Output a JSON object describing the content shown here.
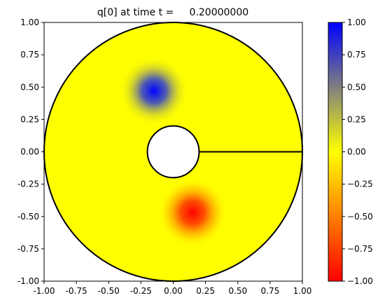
{
  "chart_data": {
    "type": "heatmap",
    "title": "q[0] at time t =     0.20000000",
    "xlabel": "",
    "ylabel": "",
    "xlim": [
      -1.0,
      1.0
    ],
    "ylim": [
      -1.0,
      1.0
    ],
    "x_ticks": [
      "-1.00",
      "-0.75",
      "-0.50",
      "-0.25",
      "0.00",
      "0.25",
      "0.50",
      "0.75",
      "1.00"
    ],
    "y_ticks": [
      "-1.00",
      "-0.75",
      "-0.50",
      "-0.25",
      "0.00",
      "0.25",
      "0.50",
      "0.75",
      "1.00"
    ],
    "domain": {
      "shape": "annulus",
      "outer_radius": 1.0,
      "inner_radius": 0.2,
      "cut_line": {
        "from": [
          0.2,
          0.0
        ],
        "to": [
          1.0,
          0.0
        ]
      }
    },
    "background_value": 0.0,
    "blobs": [
      {
        "center": [
          -0.15,
          0.47
        ],
        "peak": 1.0,
        "sigma": 0.09
      },
      {
        "center": [
          0.15,
          -0.47
        ],
        "peak": -1.0,
        "sigma": 0.09
      }
    ],
    "colorbar": {
      "range": [
        -1.0,
        1.0
      ],
      "ticks": [
        "1.00",
        "0.75",
        "0.50",
        "0.25",
        "0.00",
        "−0.25",
        "−0.50",
        "−0.75",
        "−1.00"
      ],
      "stops": [
        {
          "value": -1.0,
          "color": "#ff0000"
        },
        {
          "value": 0.0,
          "color": "#ffff00"
        },
        {
          "value": 1.0,
          "color": "#0000ff"
        }
      ]
    },
    "grid": false
  }
}
